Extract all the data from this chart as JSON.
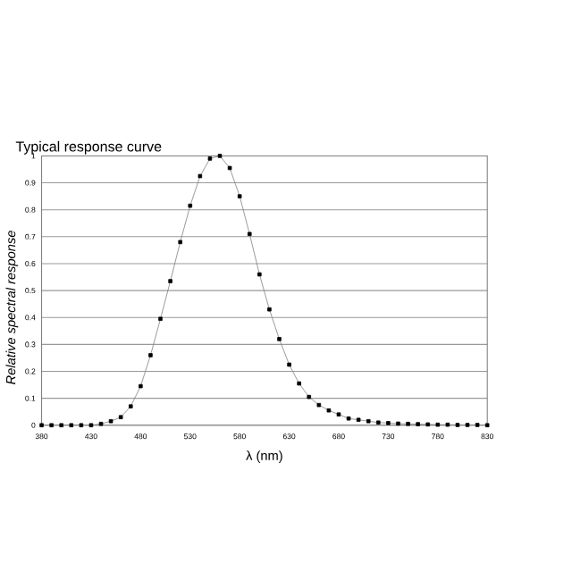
{
  "chart_data": {
    "type": "line",
    "title": "Typical response curve",
    "xlabel": "λ (nm)",
    "ylabel": "Relative spectral response",
    "x": [
      380,
      390,
      400,
      410,
      420,
      430,
      440,
      450,
      460,
      470,
      480,
      490,
      500,
      510,
      520,
      530,
      540,
      550,
      560,
      570,
      580,
      590,
      600,
      610,
      620,
      630,
      640,
      650,
      660,
      670,
      680,
      690,
      700,
      710,
      720,
      730,
      740,
      750,
      760,
      770,
      780,
      790,
      800,
      810,
      820,
      830
    ],
    "series": [
      {
        "color": "#000000",
        "values": [
          0,
          0,
          0,
          0,
          0,
          0,
          0.005,
          0.015,
          0.03,
          0.07,
          0.145,
          0.26,
          0.395,
          0.535,
          0.68,
          0.815,
          0.925,
          0.99,
          1.0,
          0.955,
          0.85,
          0.71,
          0.56,
          0.43,
          0.32,
          0.225,
          0.155,
          0.105,
          0.075,
          0.055,
          0.04,
          0.025,
          0.02,
          0.015,
          0.01,
          0.008,
          0.006,
          0.005,
          0.004,
          0.003,
          0.002,
          0.002,
          0.001,
          0.001,
          0.001,
          0
        ]
      }
    ],
    "xlim": [
      380,
      830
    ],
    "xticks": [
      380,
      430,
      480,
      530,
      580,
      630,
      680,
      730,
      780,
      830
    ],
    "ylim": [
      0,
      1
    ],
    "yticks": [
      0,
      0.1,
      0.2,
      0.3,
      0.4,
      0.5,
      0.6,
      0.7,
      0.8,
      0.9,
      1
    ],
    "grid": "y",
    "marker": "square",
    "line_style": "solid"
  }
}
